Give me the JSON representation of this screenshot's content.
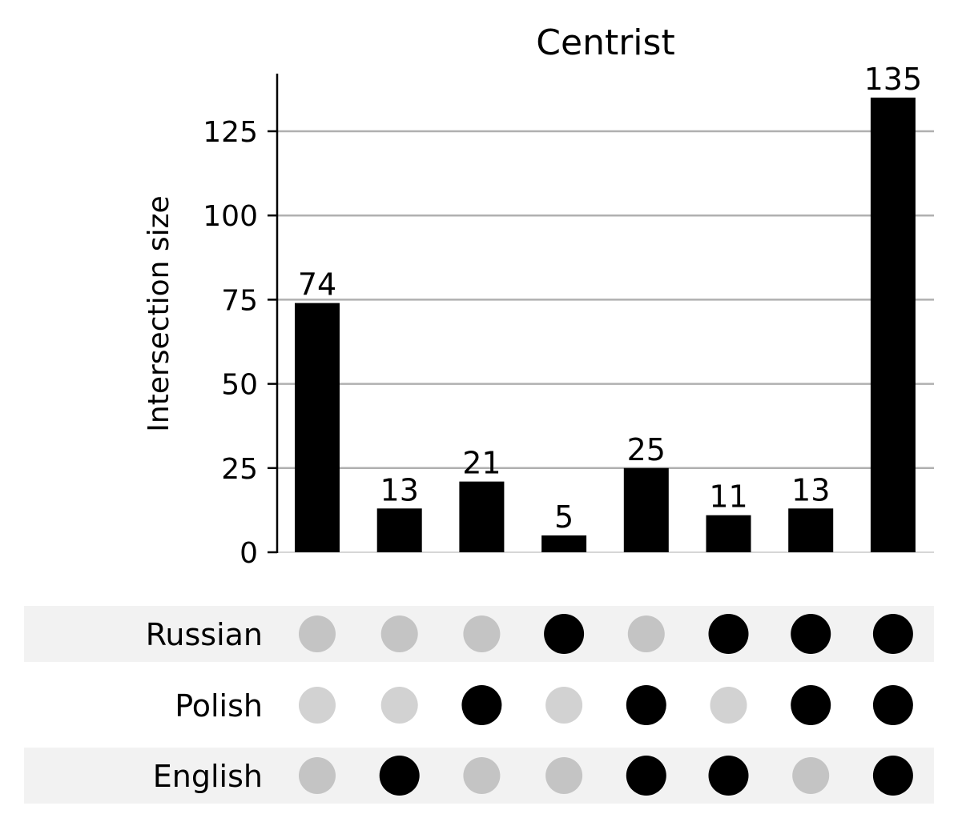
{
  "chart_data": {
    "type": "bar",
    "title": "Centrist",
    "ylabel": "Intersection size",
    "xlabel": "",
    "ylim": [
      0,
      142
    ],
    "yticks": [
      0,
      25,
      50,
      75,
      100,
      125
    ],
    "grid": true,
    "sets": [
      "Russian",
      "Polish",
      "English"
    ],
    "intersections": [
      {
        "members": [],
        "value": 74
      },
      {
        "members": [
          "English"
        ],
        "value": 13
      },
      {
        "members": [
          "Polish"
        ],
        "value": 21
      },
      {
        "members": [
          "Russian"
        ],
        "value": 5
      },
      {
        "members": [
          "Polish",
          "English"
        ],
        "value": 25
      },
      {
        "members": [
          "Russian",
          "English"
        ],
        "value": 11
      },
      {
        "members": [
          "Russian",
          "Polish"
        ],
        "value": 13
      },
      {
        "members": [
          "Russian",
          "Polish",
          "English"
        ],
        "value": 135
      }
    ],
    "bar_labels": [
      "74",
      "13",
      "21",
      "5",
      "25",
      "11",
      "13",
      "135"
    ],
    "tick_labels": [
      "0",
      "25",
      "50",
      "75",
      "100",
      "125"
    ]
  },
  "colors": {
    "bar": "#000000",
    "dot_active": "#000000",
    "dot_inactive_shaded_row": "#c4c4c4",
    "dot_inactive_plain_row": "#d2d2d2",
    "grid": "#b0b0b0",
    "row_shade": "#f2f2f2"
  }
}
